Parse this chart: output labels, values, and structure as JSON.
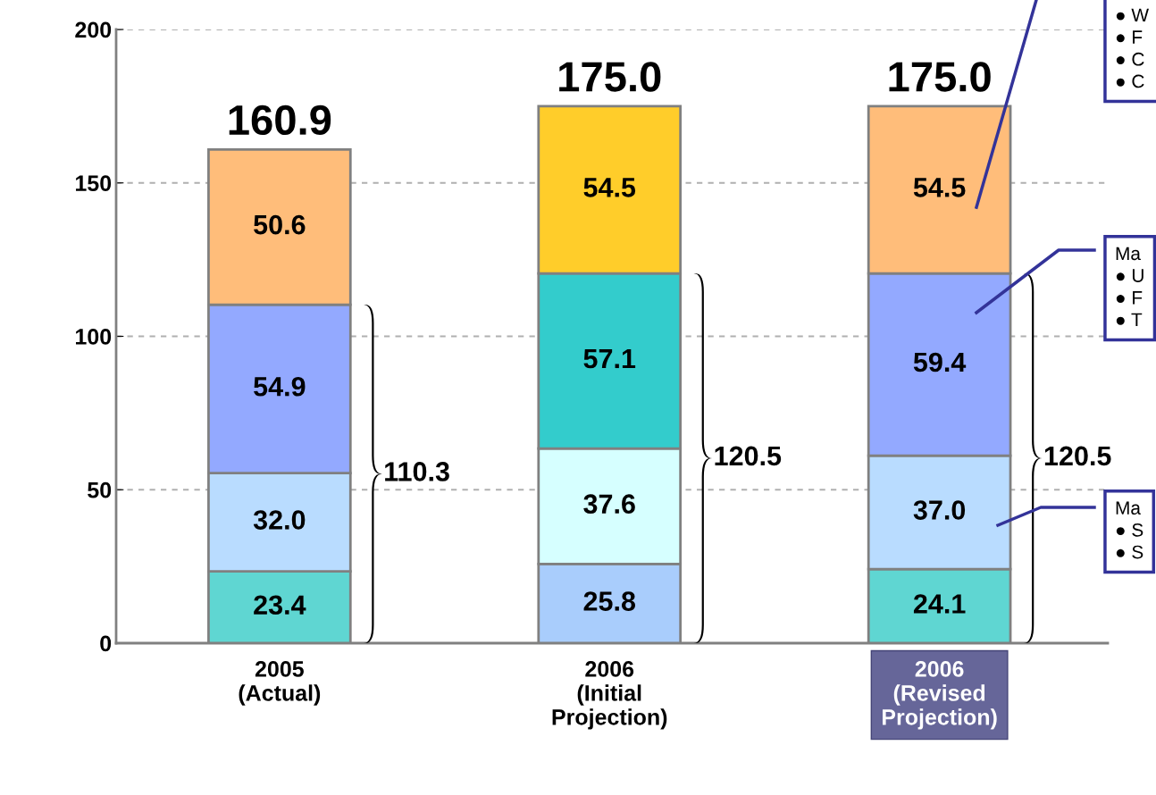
{
  "chart_data": {
    "type": "bar",
    "stacked": true,
    "categories": [
      "2005\n(Actual)",
      "2006\n(Initial\nProjection)",
      "2006\n(Revised\nProjection)"
    ],
    "series": [
      {
        "colors": [
          "#5fd6d2",
          "#a9cdfc",
          "#5fd6d2"
        ],
        "values": [
          23.4,
          25.8,
          24.1
        ],
        "value_labels": [
          "23.4",
          "25.8",
          "24.1"
        ]
      },
      {
        "colors": [
          "#b9dcff",
          "#d6ffff",
          "#b9dcff"
        ],
        "values": [
          32.0,
          37.6,
          37.0
        ],
        "value_labels": [
          "32.0",
          "37.6",
          "37.0"
        ]
      },
      {
        "colors": [
          "#93a9ff",
          "#33cccc",
          "#93a9ff"
        ],
        "values": [
          54.9,
          57.1,
          59.4
        ],
        "value_labels": [
          "54.9",
          "57.1",
          "59.4"
        ]
      },
      {
        "colors": [
          "#ffbd7a",
          "#ffcd2a",
          "#ffbd7a"
        ],
        "values": [
          50.6,
          54.5,
          54.5
        ],
        "value_labels": [
          "50.6",
          "54.5",
          "54.5"
        ]
      }
    ],
    "totals": [
      "160.9",
      "175.0",
      "175.0"
    ],
    "ylim": [
      0,
      200
    ],
    "yticks": [
      0,
      50,
      100,
      150,
      200
    ],
    "grid": "y",
    "annotations": [
      "110.3",
      "120.5",
      "120.5",
      "● W\n● F\n● C\n● C",
      "Ma\n● U\n● F\n● T",
      "Ma\n● S\n● S"
    ]
  }
}
